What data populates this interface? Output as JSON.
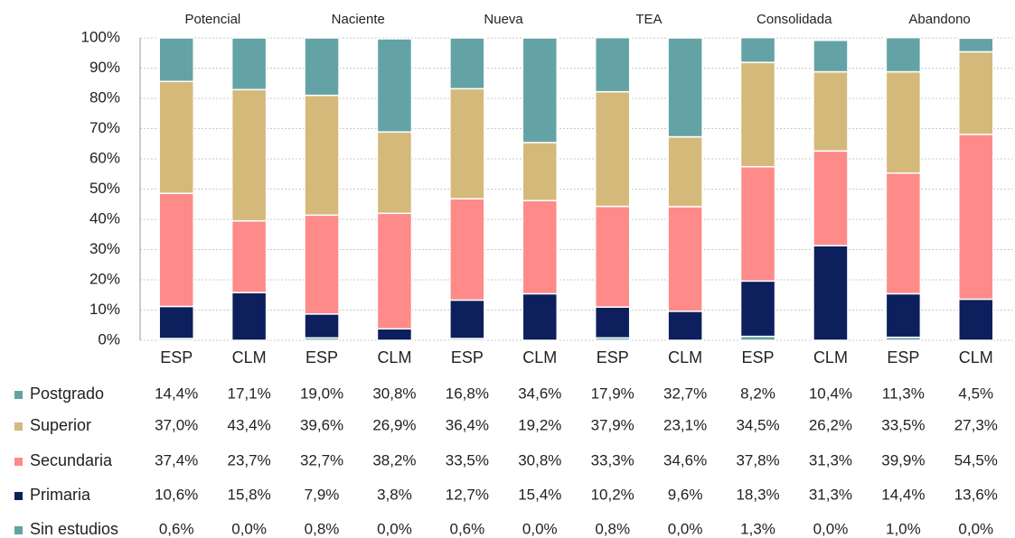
{
  "chart_data": {
    "type": "stacked_bar",
    "groups": [
      "Potencial",
      "Naciente",
      "Nueva",
      "TEA",
      "Consolidada",
      "Abandono"
    ],
    "categories": [
      "ESP",
      "CLM",
      "ESP",
      "CLM",
      "ESP",
      "CLM",
      "ESP",
      "CLM",
      "ESP",
      "CLM",
      "ESP",
      "CLM"
    ],
    "ylim": [
      0,
      100
    ],
    "yticks": [
      {
        "value": 0,
        "label": "0%"
      },
      {
        "value": 10,
        "label": "10%"
      },
      {
        "value": 20,
        "label": "20%"
      },
      {
        "value": 30,
        "label": "30%"
      },
      {
        "value": 40,
        "label": "40%"
      },
      {
        "value": 50,
        "label": "50%"
      },
      {
        "value": 60,
        "label": "60%"
      },
      {
        "value": 70,
        "label": "70%"
      },
      {
        "value": 80,
        "label": "80%"
      },
      {
        "value": 90,
        "label": "90%"
      },
      {
        "value": 100,
        "label": "100%"
      }
    ],
    "grid": true,
    "series": [
      {
        "name": "Postgrado",
        "color": "#64a3a5",
        "values": [
          14.4,
          17.1,
          19.0,
          30.8,
          16.8,
          34.6,
          17.9,
          32.7,
          8.2,
          10.4,
          11.3,
          4.5
        ],
        "value_labels": [
          "14,4%",
          "17,1%",
          "19,0%",
          "30,8%",
          "16,8%",
          "34,6%",
          "17,9%",
          "32,7%",
          "8,2%",
          "10,4%",
          "11,3%",
          "4,5%"
        ]
      },
      {
        "name": "Superior",
        "color": "#d4b97a",
        "values": [
          37.0,
          43.4,
          39.6,
          26.9,
          36.4,
          19.2,
          37.9,
          23.1,
          34.5,
          26.2,
          33.5,
          27.3
        ],
        "value_labels": [
          "37,0%",
          "43,4%",
          "39,6%",
          "26,9%",
          "36,4%",
          "19,2%",
          "37,9%",
          "23,1%",
          "34,5%",
          "26,2%",
          "33,5%",
          "27,3%"
        ]
      },
      {
        "name": "Secundaria",
        "color": "#ff8a8a",
        "values": [
          37.4,
          23.7,
          32.7,
          38.2,
          33.5,
          30.8,
          33.3,
          34.6,
          37.8,
          31.3,
          39.9,
          54.5
        ],
        "value_labels": [
          "37,4%",
          "23,7%",
          "32,7%",
          "38,2%",
          "33,5%",
          "30,8%",
          "33,3%",
          "34,6%",
          "37,8%",
          "31,3%",
          "39,9%",
          "54,5%"
        ]
      },
      {
        "name": "Primaria",
        "color": "#0d1f5c",
        "values": [
          10.6,
          15.8,
          7.9,
          3.8,
          12.7,
          15.4,
          10.2,
          9.6,
          18.3,
          31.3,
          14.4,
          13.6
        ],
        "value_labels": [
          "10,6%",
          "15,8%",
          "7,9%",
          "3,8%",
          "12,7%",
          "15,4%",
          "10,2%",
          "9,6%",
          "18,3%",
          "31,3%",
          "14,4%",
          "13,6%"
        ]
      },
      {
        "name": "Sin estudios",
        "color": "#64a3a5",
        "values": [
          0.6,
          0.0,
          0.8,
          0.0,
          0.6,
          0.0,
          0.8,
          0.0,
          1.3,
          0.0,
          1.0,
          0.0
        ],
        "value_labels": [
          "0,6%",
          "0,0%",
          "0,8%",
          "0,0%",
          "0,6%",
          "0,0%",
          "0,8%",
          "0,0%",
          "1,3%",
          "0,0%",
          "1,0%",
          "0,0%"
        ]
      }
    ]
  }
}
